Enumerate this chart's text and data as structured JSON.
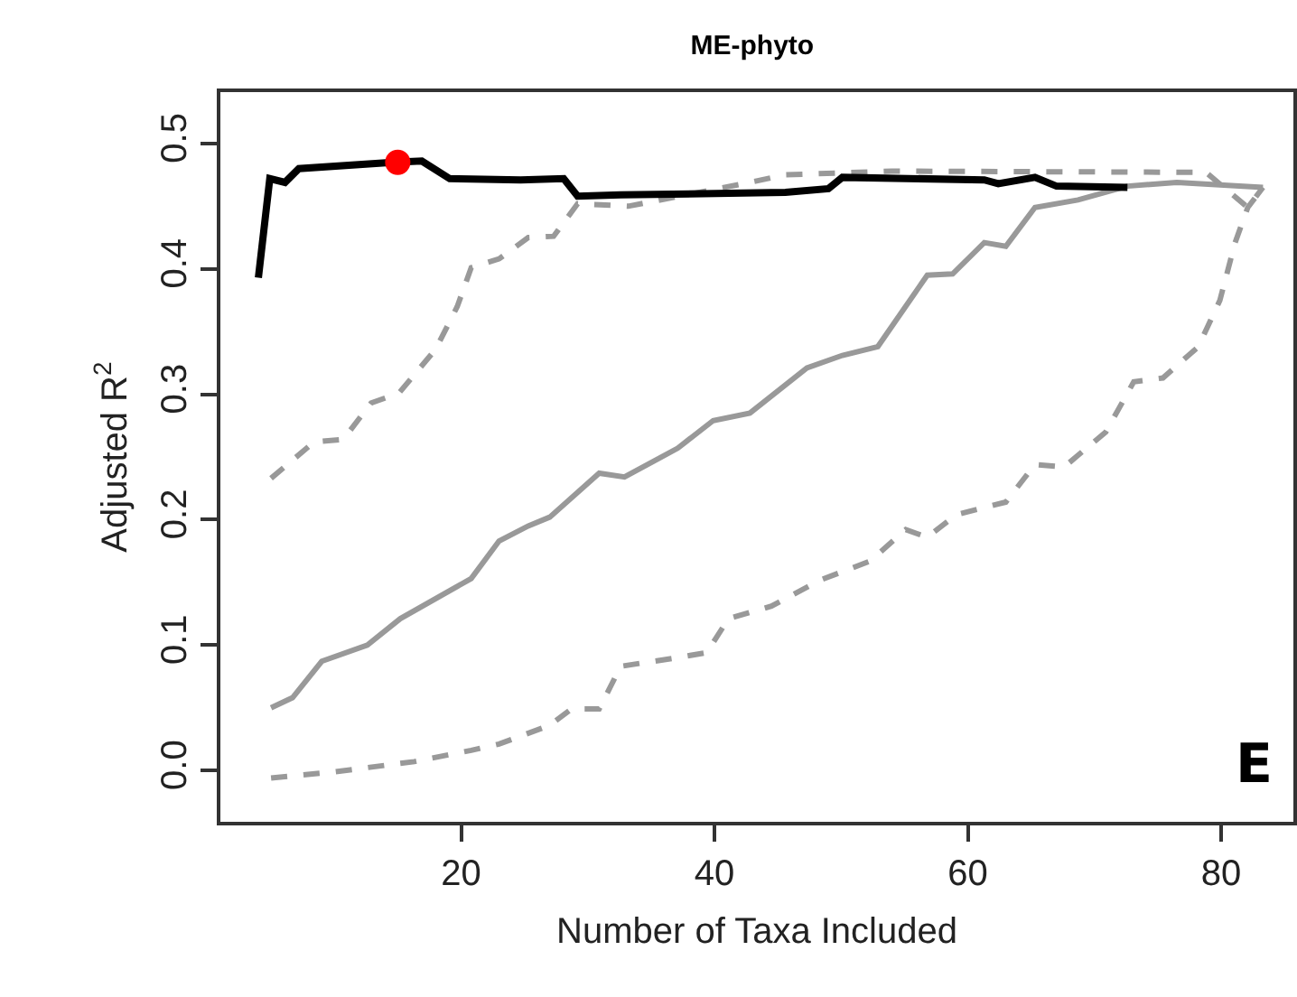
{
  "chart_data": {
    "type": "line",
    "title": "ME-phyto",
    "xlabel": "Number of Taxa Included",
    "ylabel": "Adjusted R$^{2}$",
    "xlim": [
      1,
      85.7
    ],
    "ylim": [
      -0.041,
      0.541
    ],
    "xticks": [
      20,
      40,
      60,
      80
    ],
    "yticks": [
      {
        "value": 0,
        "label": "0.0"
      },
      {
        "value": 0.1,
        "label": "0.1"
      },
      {
        "value": 0.2,
        "label": "0.2"
      },
      {
        "value": 0.3,
        "label": "0.3"
      },
      {
        "value": 0.4,
        "label": "0.4"
      },
      {
        "value": 0.5,
        "label": "0.5"
      }
    ],
    "grid": false,
    "annotations": [
      "E"
    ],
    "series": [
      {
        "color": "#999999",
        "line_style": "dashed",
        "x": [
          5,
          8.4,
          10.7,
          12.9,
          15.1,
          18,
          19.7,
          20.8,
          23,
          25.3,
          27.3,
          29.2,
          33.2,
          42.8,
          45.6,
          54,
          78.8,
          82.1,
          83.3
        ],
        "values": [
          0.233,
          0.262,
          0.264,
          0.293,
          0.301,
          0.336,
          0.37,
          0.401,
          0.408,
          0.425,
          0.426,
          0.452,
          0.45,
          0.469,
          0.475,
          0.478,
          0.477,
          0.449,
          0.465
        ]
      },
      {
        "color": "#999999",
        "line_style": "dashed",
        "x": [
          5,
          10.1,
          16.3,
          20.8,
          23,
          27,
          28.7,
          30.9,
          32.6,
          37.1,
          39.4,
          41.1,
          44.5,
          48.4,
          52.3,
          55.1,
          56.8,
          59.1,
          63,
          65.3,
          67.6,
          70.9,
          73.1,
          75.4,
          78.2,
          79.9,
          81.1,
          82.1,
          83.3
        ],
        "values": [
          -0.006,
          -0.001,
          0.007,
          0.016,
          0.021,
          0.036,
          0.049,
          0.049,
          0.083,
          0.09,
          0.094,
          0.121,
          0.131,
          0.152,
          0.167,
          0.192,
          0.186,
          0.204,
          0.214,
          0.244,
          0.242,
          0.27,
          0.31,
          0.313,
          0.338,
          0.375,
          0.421,
          0.449,
          0.465
        ]
      },
      {
        "color": "#999999",
        "line_style": "solid",
        "x": [
          5,
          6.7,
          9,
          12.6,
          15.2,
          20.8,
          23,
          25.3,
          27,
          30.9,
          32.9,
          37.1,
          39.9,
          42.8,
          47.3,
          50.1,
          52.9,
          56.8,
          58.8,
          61.3,
          63,
          65.3,
          68.7,
          72.6,
          76.5,
          83.3
        ],
        "values": [
          0.05,
          0.058,
          0.087,
          0.1,
          0.121,
          0.153,
          0.183,
          0.195,
          0.202,
          0.237,
          0.234,
          0.257,
          0.279,
          0.285,
          0.321,
          0.331,
          0.338,
          0.395,
          0.396,
          0.421,
          0.418,
          0.449,
          0.455,
          0.466,
          0.469,
          0.465
        ]
      },
      {
        "color": "#000000",
        "line_style": "solid",
        "x": [
          4,
          4.9,
          6.1,
          7.2,
          14.6,
          16.9,
          19.1,
          24.7,
          28.1,
          29.2,
          32.6,
          45.6,
          49,
          50.1,
          61.3,
          62.4,
          65.3,
          67,
          72.6
        ],
        "values": [
          0.393,
          0.472,
          0.469,
          0.48,
          0.485,
          0.486,
          0.472,
          0.471,
          0.472,
          0.458,
          0.459,
          0.461,
          0.464,
          0.473,
          0.471,
          0.468,
          0.473,
          0.466,
          0.465
        ]
      },
      {
        "type": "scatter",
        "marker": "circle",
        "color": "#ff0000",
        "x": [
          15
        ],
        "values": [
          0.485
        ]
      }
    ]
  }
}
